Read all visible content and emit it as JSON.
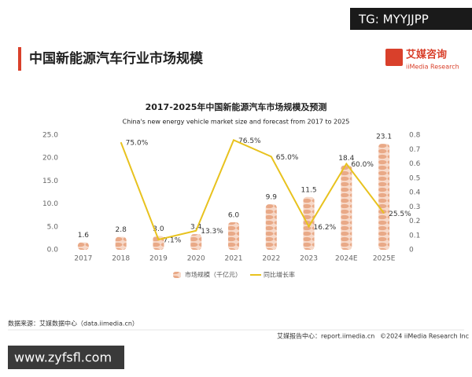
{
  "watermark_top": "TG: MYYJJPP",
  "watermark_bottom": "www.zyfsfl.com",
  "header": {
    "title": "中国新能源汽车行业市场规模",
    "logo": "艾媒咨询",
    "logo_sub": "iiMedia Research"
  },
  "footer": {
    "source": "数据来源：艾媒数据中心（data.iimedia.cn）",
    "report": "艾媒报告中心：report.iimedia.cn",
    "copyright": "©2024  iiMedia Research  Inc"
  },
  "chart_data": {
    "type": "bar-line",
    "title": "2017-2025年中国新能源汽车市场规模及预测",
    "subtitle": "China's new energy vehicle market size and forecast from 2017 to 2025",
    "categories": [
      "2017",
      "2018",
      "2019",
      "2020",
      "2021",
      "2022",
      "2023",
      "2024E",
      "2025E"
    ],
    "series": [
      {
        "name": "市场规模（千亿元）",
        "type": "bar",
        "color": "#e9a987",
        "values": [
          1.6,
          2.8,
          3.0,
          3.4,
          6.0,
          9.9,
          11.5,
          18.4,
          23.1
        ],
        "value_labels": [
          "1.6",
          "2.8",
          "3.0",
          "3.4",
          "6.0",
          "9.9",
          "11.5",
          "18.4",
          "23.1"
        ]
      },
      {
        "name": "同比增长率",
        "type": "line",
        "axis": "y2",
        "color": "#e8c21e",
        "values": [
          null,
          0.75,
          0.071,
          0.133,
          0.765,
          0.65,
          0.162,
          0.6,
          0.255
        ],
        "value_labels": [
          null,
          "75.0%",
          "7.1%",
          "13.3%",
          "76.5%",
          "65.0%",
          "16.2%",
          "60.0%",
          "25.5%"
        ]
      }
    ],
    "ylim": [
      0,
      25
    ],
    "yticks": [
      {
        "value": 0,
        "label": "0.0"
      },
      {
        "value": 5,
        "label": "5.0"
      },
      {
        "value": 10,
        "label": "10.0"
      },
      {
        "value": 15,
        "label": "15.0"
      },
      {
        "value": 20,
        "label": "20.0"
      },
      {
        "value": 25,
        "label": "25.0"
      }
    ],
    "y2lim": [
      0,
      0.8
    ],
    "y2ticks": [
      0,
      0.1,
      0.2,
      0.3,
      0.4,
      0.5,
      0.6,
      0.7,
      0.8
    ],
    "grid": false,
    "legend": "bottom"
  }
}
